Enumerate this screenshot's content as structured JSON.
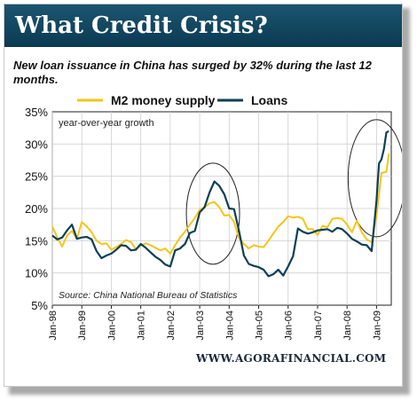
{
  "header": {
    "title": "What Credit Crisis?"
  },
  "subtitle": "New loan issuance in China has surged by 32% during the last 12 months.",
  "footer": {
    "url": "WWW.AGORAFINANCIAL.COM"
  },
  "colors": {
    "banner": "#0d3e57",
    "m2": "#f5c518",
    "loans": "#0d3f56"
  },
  "chart_data": {
    "type": "line",
    "inner_label": "year-over-year growth",
    "source_note": "Source: China National Bureau of Statistics",
    "ylim": [
      5,
      35
    ],
    "yticks": [
      "5%",
      "10%",
      "15%",
      "20%",
      "25%",
      "30%",
      "35%"
    ],
    "xticks": [
      "Jan-98",
      "Jan-99",
      "Jan-00",
      "Jan-01",
      "Jan-02",
      "Jan-03",
      "Jan-04",
      "Jan-05",
      "Jan-06",
      "Jan-07",
      "Jan-08",
      "Jan-09"
    ],
    "x_start": "Jan-98",
    "x_end": "Jun-09",
    "grid": true,
    "legend_position": "top",
    "annotations": [
      "circle around 2003 peak",
      "circle around 2009 surge"
    ],
    "series": [
      {
        "name": "M2 money supply",
        "color": "#f5c518",
        "points": [
          [
            "Jan-98",
            17.2
          ],
          [
            "Mar-98",
            15.5
          ],
          [
            "May-98",
            14.1
          ],
          [
            "Jul-98",
            15.8
          ],
          [
            "Sep-98",
            16.5
          ],
          [
            "Nov-98",
            15.3
          ],
          [
            "Jan-99",
            17.9
          ],
          [
            "Mar-99",
            17.2
          ],
          [
            "May-99",
            16.3
          ],
          [
            "Jul-99",
            15.0
          ],
          [
            "Sep-99",
            14.5
          ],
          [
            "Nov-99",
            14.6
          ],
          [
            "Jan-00",
            13.6
          ],
          [
            "Mar-00",
            14.0
          ],
          [
            "May-00",
            14.5
          ],
          [
            "Jul-00",
            15.1
          ],
          [
            "Sep-00",
            14.8
          ],
          [
            "Nov-00",
            13.7
          ],
          [
            "Jan-01",
            14.2
          ],
          [
            "Mar-01",
            14.6
          ],
          [
            "May-01",
            14.3
          ],
          [
            "Jul-01",
            13.9
          ],
          [
            "Sep-01",
            13.5
          ],
          [
            "Nov-01",
            13.8
          ],
          [
            "Jan-02",
            13.0
          ],
          [
            "Mar-02",
            14.3
          ],
          [
            "May-02",
            15.5
          ],
          [
            "Jul-02",
            16.4
          ],
          [
            "Sep-02",
            17.5
          ],
          [
            "Nov-02",
            18.5
          ],
          [
            "Jan-03",
            19.8
          ],
          [
            "Mar-03",
            20.2
          ],
          [
            "May-03",
            20.8
          ],
          [
            "Jul-03",
            21.0
          ],
          [
            "Sep-03",
            20.2
          ],
          [
            "Nov-03",
            18.9
          ],
          [
            "Jan-04",
            19.0
          ],
          [
            "Mar-04",
            17.9
          ],
          [
            "May-04",
            15.4
          ],
          [
            "Jul-04",
            14.5
          ],
          [
            "Sep-04",
            13.8
          ],
          [
            "Nov-04",
            14.3
          ],
          [
            "Jan-05",
            14.1
          ],
          [
            "Mar-05",
            14.0
          ],
          [
            "May-05",
            15.0
          ],
          [
            "Jul-05",
            16.1
          ],
          [
            "Sep-05",
            17.2
          ],
          [
            "Nov-05",
            17.9
          ],
          [
            "Jan-06",
            18.8
          ],
          [
            "Mar-06",
            18.6
          ],
          [
            "May-06",
            18.7
          ],
          [
            "Jul-06",
            18.4
          ],
          [
            "Sep-06",
            16.8
          ],
          [
            "Nov-06",
            16.8
          ],
          [
            "Jan-07",
            15.9
          ],
          [
            "Mar-07",
            17.3
          ],
          [
            "May-07",
            17.1
          ],
          [
            "Jul-07",
            18.4
          ],
          [
            "Sep-07",
            18.5
          ],
          [
            "Nov-07",
            18.4
          ],
          [
            "Jan-08",
            17.5
          ],
          [
            "Mar-08",
            16.3
          ],
          [
            "May-08",
            18.1
          ],
          [
            "Jul-08",
            16.3
          ],
          [
            "Sep-08",
            15.2
          ],
          [
            "Nov-08",
            14.8
          ],
          [
            "Jan-09",
            18.8
          ],
          [
            "Mar-09",
            25.5
          ],
          [
            "May-09",
            25.7
          ],
          [
            "Jun-09",
            28.5
          ]
        ]
      },
      {
        "name": "Loans",
        "color": "#0d3f56",
        "points": [
          [
            "Jan-98",
            15.8
          ],
          [
            "Mar-98",
            15.2
          ],
          [
            "May-98",
            15.5
          ],
          [
            "Jul-98",
            16.6
          ],
          [
            "Sep-98",
            17.5
          ],
          [
            "Nov-98",
            15.3
          ],
          [
            "Jan-99",
            15.5
          ],
          [
            "Mar-99",
            15.6
          ],
          [
            "May-99",
            15.2
          ],
          [
            "Jul-99",
            13.4
          ],
          [
            "Sep-99",
            12.3
          ],
          [
            "Nov-99",
            12.7
          ],
          [
            "Jan-00",
            13.0
          ],
          [
            "Mar-00",
            13.6
          ],
          [
            "May-00",
            14.3
          ],
          [
            "Jul-00",
            14.2
          ],
          [
            "Sep-00",
            13.5
          ],
          [
            "Nov-00",
            13.6
          ],
          [
            "Jan-01",
            14.5
          ],
          [
            "Mar-01",
            13.9
          ],
          [
            "May-01",
            13.2
          ],
          [
            "Jul-01",
            12.5
          ],
          [
            "Sep-01",
            12.0
          ],
          [
            "Nov-01",
            11.3
          ],
          [
            "Jan-02",
            11.0
          ],
          [
            "Mar-02",
            13.5
          ],
          [
            "May-02",
            13.8
          ],
          [
            "Jul-02",
            14.5
          ],
          [
            "Sep-02",
            16.2
          ],
          [
            "Nov-02",
            16.5
          ],
          [
            "Jan-03",
            19.4
          ],
          [
            "Mar-03",
            20.2
          ],
          [
            "May-03",
            22.5
          ],
          [
            "Jul-03",
            24.2
          ],
          [
            "Sep-03",
            23.5
          ],
          [
            "Nov-03",
            22.2
          ],
          [
            "Jan-04",
            20.0
          ],
          [
            "Mar-04",
            19.9
          ],
          [
            "May-04",
            16.5
          ],
          [
            "Jul-04",
            12.7
          ],
          [
            "Sep-04",
            11.4
          ],
          [
            "Nov-04",
            11.1
          ],
          [
            "Jan-05",
            10.9
          ],
          [
            "Mar-05",
            10.5
          ],
          [
            "May-05",
            9.5
          ],
          [
            "Jul-05",
            9.8
          ],
          [
            "Sep-05",
            10.5
          ],
          [
            "Nov-05",
            9.6
          ],
          [
            "Jan-06",
            11.0
          ],
          [
            "Mar-06",
            12.6
          ],
          [
            "May-06",
            16.9
          ],
          [
            "Jul-06",
            16.4
          ],
          [
            "Sep-06",
            16.1
          ],
          [
            "Nov-06",
            16.3
          ],
          [
            "Jan-07",
            16.6
          ],
          [
            "Mar-07",
            16.7
          ],
          [
            "May-07",
            16.8
          ],
          [
            "Jul-07",
            16.4
          ],
          [
            "Sep-07",
            17.0
          ],
          [
            "Nov-07",
            16.8
          ],
          [
            "Jan-08",
            16.1
          ],
          [
            "Mar-08",
            15.3
          ],
          [
            "May-08",
            14.9
          ],
          [
            "Jul-08",
            14.4
          ],
          [
            "Sep-08",
            14.3
          ],
          [
            "Nov-08",
            13.4
          ],
          [
            "Jan-09",
            21.3
          ],
          [
            "Feb-09",
            27.0
          ],
          [
            "Mar-09",
            27.6
          ],
          [
            "Apr-09",
            29.2
          ],
          [
            "May-09",
            31.8
          ],
          [
            "Jun-09",
            32.0
          ]
        ]
      }
    ]
  }
}
